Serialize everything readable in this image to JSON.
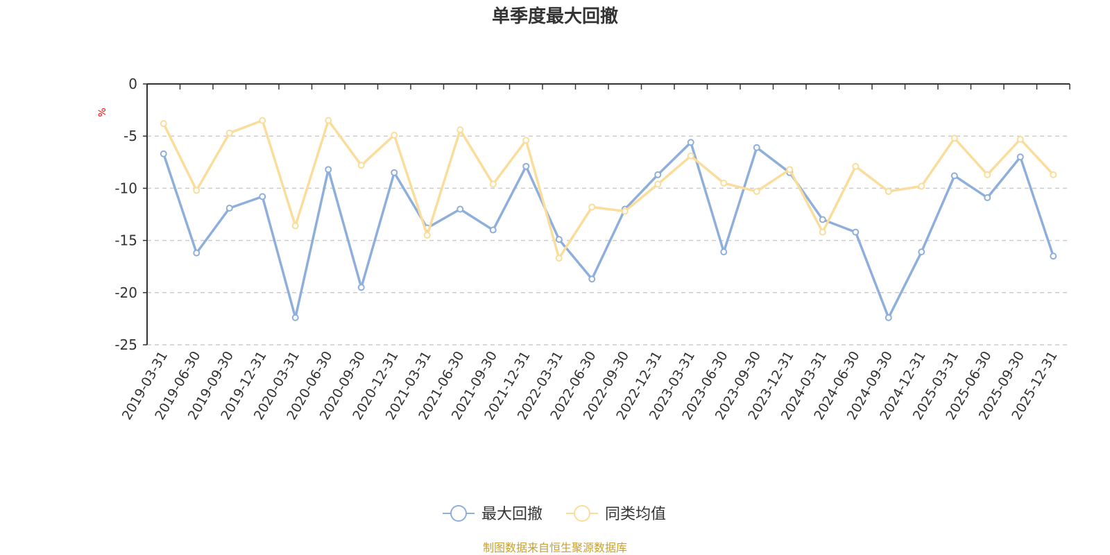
{
  "chart_data": {
    "type": "line",
    "title": "单季度最大回撤",
    "ylabel": "%",
    "ylim": [
      -25,
      0
    ],
    "yticks": [
      0,
      -5,
      -10,
      -15,
      -20,
      -25
    ],
    "grid": true,
    "legend_position": "bottom",
    "categories": [
      "2019-03-31",
      "2019-06-30",
      "2019-09-30",
      "2019-12-31",
      "2020-03-31",
      "2020-06-30",
      "2020-09-30",
      "2020-12-31",
      "2021-03-31",
      "2021-06-30",
      "2021-09-30",
      "2021-12-31",
      "2022-03-31",
      "2022-06-30",
      "2022-09-30",
      "2022-12-31",
      "2023-03-31",
      "2023-06-30",
      "2023-09-30",
      "2023-12-31",
      "2024-03-31",
      "2024-06-30",
      "2024-09-30",
      "2024-12-31",
      "2025-03-31",
      "2025-06-30",
      "2025-09-30",
      "2025-12-31"
    ],
    "series": [
      {
        "name": "最大回撤",
        "color": "#8eaedb",
        "values": [
          -6.7,
          -16.2,
          -11.9,
          -10.8,
          -22.4,
          -8.2,
          -19.5,
          -8.5,
          -13.8,
          -12.0,
          -14.0,
          -7.9,
          -14.9,
          -18.7,
          -12.0,
          -8.7,
          -5.6,
          -16.1,
          -6.1,
          -8.5,
          -13.0,
          -14.2,
          -22.4,
          -16.1,
          -8.8,
          -10.9,
          -7.0,
          -16.5
        ]
      },
      {
        "name": "同类均值",
        "color": "#fadd9a",
        "values": [
          -3.8,
          -10.2,
          -4.7,
          -3.5,
          -13.6,
          -3.5,
          -7.8,
          -4.9,
          -14.5,
          -4.4,
          -9.6,
          -5.4,
          -16.7,
          -11.8,
          -12.2,
          -9.6,
          -6.9,
          -9.5,
          -10.3,
          -8.2,
          -14.2,
          -7.9,
          -10.3,
          -9.8,
          -5.2,
          -8.7,
          -5.3,
          -8.7
        ]
      }
    ]
  },
  "footer": {
    "source": "制图数据来自恒生聚源数据库"
  }
}
